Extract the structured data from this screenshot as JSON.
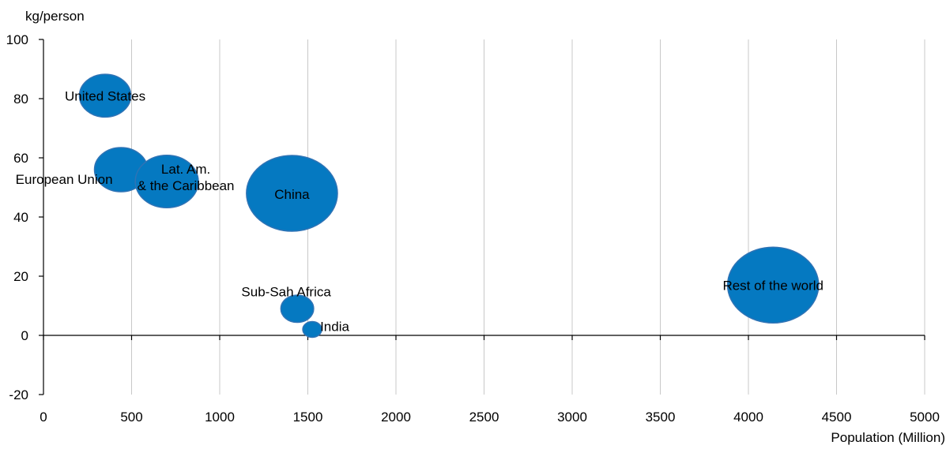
{
  "chart_data": {
    "type": "scatter",
    "subtype": "bubble",
    "title": "",
    "xlabel": "Population (Million)",
    "ylabel": "kg/person",
    "xlim": [
      0,
      5000
    ],
    "ylim": [
      -20,
      100
    ],
    "x_ticks": [
      0,
      500,
      1000,
      1500,
      2000,
      2500,
      3000,
      3500,
      4000,
      4500,
      5000
    ],
    "y_ticks": [
      -20,
      0,
      20,
      40,
      60,
      80,
      100
    ],
    "grid": "vertical",
    "bubble_color": "#0579C1",
    "bubble_edge_color": "#2F73B5",
    "points": [
      {
        "label": "United States",
        "x": 350,
        "y": 81,
        "size": 0.32
      },
      {
        "label": "European Union",
        "x": 440,
        "y": 56,
        "size": 0.34
      },
      {
        "label": "Lat. Am.\n& the Caribbean",
        "x": 700,
        "y": 52,
        "size": 0.48
      },
      {
        "label": "China",
        "x": 1410,
        "y": 48,
        "size": 1.0
      },
      {
        "label": "Sub-Sah Africa",
        "x": 1440,
        "y": 9,
        "size": 0.13
      },
      {
        "label": "India",
        "x": 1525,
        "y": 2,
        "size": 0.03
      },
      {
        "label": "Rest of the world",
        "x": 4140,
        "y": 17,
        "size": 1.0
      }
    ]
  }
}
